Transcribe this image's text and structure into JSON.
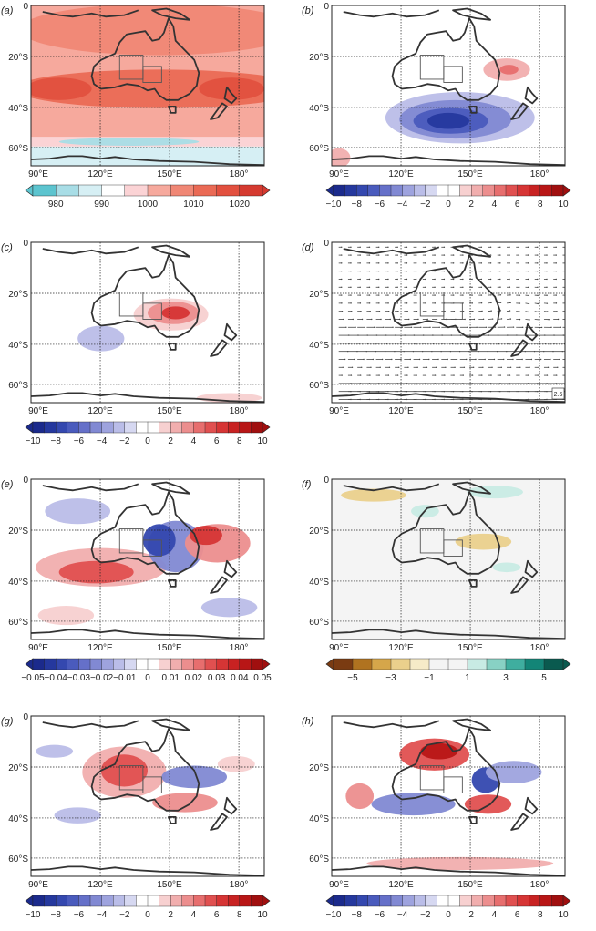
{
  "figure": {
    "lon_ticks": [
      "90°E",
      "120°E",
      "150°E",
      "180°"
    ],
    "lat_ticks": [
      "0",
      "20°S",
      "40°S",
      "60°S"
    ],
    "panels": [
      {
        "id": "a",
        "label": "(a)",
        "lat_labels": [
          "0",
          "20°S",
          "40°S",
          "60°S"
        ],
        "field": "mslp",
        "vector_scale_label": "",
        "colorbar": {
          "labels": [
            "980",
            "990",
            "1000",
            "1010",
            "1020"
          ],
          "colors": [
            "#5cc4cf",
            "#a8dde6",
            "#d6eff4",
            "#ffffff",
            "#fbd3d5",
            "#f6a99d",
            "#f08775",
            "#ea6a55",
            "#e2503f",
            "#d53a30"
          ]
        }
      },
      {
        "id": "b",
        "label": "(b)",
        "lat_labels": [
          "0",
          "20°S",
          "40°S",
          "60°S"
        ],
        "field": "anomaly_b",
        "vector_scale_label": "",
        "colorbar": {
          "labels": [
            "−10",
            "−8",
            "−6",
            "−4",
            "−2",
            "0",
            "2",
            "4",
            "6",
            "8",
            "10"
          ],
          "colors": [
            "#1b2a8c",
            "#25389e",
            "#3448af",
            "#4a5bbd",
            "#6570c9",
            "#8189d3",
            "#9ea3de",
            "#babde8",
            "#d6d8f1",
            "#ffffff",
            "#ffffff",
            "#f7d0d0",
            "#f1aeae",
            "#ec8e8e",
            "#e76e6e",
            "#e05050",
            "#d63535",
            "#c82222",
            "#b81616",
            "#a00f0f"
          ]
        }
      },
      {
        "id": "c",
        "label": "(c)",
        "lat_labels": [
          "0",
          "20°S",
          "40°S",
          "60°S"
        ],
        "field": "anomaly_c",
        "vector_scale_label": "",
        "colorbar": {
          "labels": [
            "−10",
            "−8",
            "−6",
            "−4",
            "−2",
            "0",
            "2",
            "4",
            "6",
            "8",
            "10"
          ],
          "colors": [
            "#1b2a8c",
            "#25389e",
            "#3448af",
            "#4a5bbd",
            "#6570c9",
            "#8189d3",
            "#9ea3de",
            "#babde8",
            "#d6d8f1",
            "#ffffff",
            "#ffffff",
            "#f7d0d0",
            "#f1aeae",
            "#ec8e8e",
            "#e76e6e",
            "#e05050",
            "#d63535",
            "#c82222",
            "#b81616",
            "#a00f0f"
          ]
        }
      },
      {
        "id": "d",
        "label": "(d)",
        "lat_labels": [
          "0",
          "20°S",
          "40°S",
          "60°S"
        ],
        "field": "wind_vectors",
        "vector_scale_label": "2.5",
        "colorbar": null
      },
      {
        "id": "e",
        "label": "(e)",
        "lat_labels": [
          "0",
          "20°S",
          "40°S",
          "60°S"
        ],
        "field": "anomaly_e",
        "vector_scale_label": "",
        "colorbar": {
          "labels": [
            "−0.05",
            "−0.04",
            "−0.03",
            "−0.02",
            "−0.01",
            "0",
            "0.01",
            "0.02",
            "0.03",
            "0.04",
            "0.05"
          ],
          "colors": [
            "#1b2a8c",
            "#25389e",
            "#3448af",
            "#4a5bbd",
            "#6570c9",
            "#8189d3",
            "#9ea3de",
            "#babde8",
            "#d6d8f1",
            "#ffffff",
            "#ffffff",
            "#f7d0d0",
            "#f1aeae",
            "#ec8e8e",
            "#e76e6e",
            "#e05050",
            "#d63535",
            "#c82222",
            "#b81616",
            "#a00f0f"
          ]
        }
      },
      {
        "id": "f",
        "label": "(f)",
        "lat_labels": [
          "0",
          "20°S",
          "40°S",
          "60°S"
        ],
        "field": "precip",
        "vector_scale_label": "",
        "colorbar": {
          "labels": [
            "−5",
            "−3",
            "−1",
            "1",
            "3",
            "5"
          ],
          "colors": [
            "#7a3b12",
            "#b07320",
            "#d5a64a",
            "#ead08c",
            "#f6ebc8",
            "#f4f4f4",
            "#f4f4f4",
            "#c8ebe4",
            "#88d1c4",
            "#3fae9f",
            "#138577",
            "#0a5a4f"
          ]
        }
      },
      {
        "id": "g",
        "label": "(g)",
        "lat_labels": [
          "0",
          "20°S",
          "40°S",
          "60°S"
        ],
        "field": "anomaly_g",
        "vector_scale_label": "",
        "colorbar": {
          "labels": [
            "−10",
            "−8",
            "−6",
            "−4",
            "−2",
            "0",
            "2",
            "4",
            "6",
            "8",
            "10"
          ],
          "colors": [
            "#1b2a8c",
            "#25389e",
            "#3448af",
            "#4a5bbd",
            "#6570c9",
            "#8189d3",
            "#9ea3de",
            "#babde8",
            "#d6d8f1",
            "#ffffff",
            "#ffffff",
            "#f7d0d0",
            "#f1aeae",
            "#ec8e8e",
            "#e76e6e",
            "#e05050",
            "#d63535",
            "#c82222",
            "#b81616",
            "#a00f0f"
          ]
        }
      },
      {
        "id": "h",
        "label": "(h)",
        "lat_labels": [
          "",
          "20°S",
          "40°S",
          "60°S"
        ],
        "field": "anomaly_h",
        "vector_scale_label": "",
        "colorbar": {
          "labels": [
            "−10",
            "−8",
            "−6",
            "−4",
            "−2",
            "0",
            "2",
            "4",
            "6",
            "8",
            "10"
          ],
          "colors": [
            "#1b2a8c",
            "#25389e",
            "#3448af",
            "#4a5bbd",
            "#6570c9",
            "#8189d3",
            "#9ea3de",
            "#babde8",
            "#d6d8f1",
            "#ffffff",
            "#ffffff",
            "#f7d0d0",
            "#f1aeae",
            "#ec8e8e",
            "#e76e6e",
            "#e05050",
            "#d63535",
            "#c82222",
            "#b81616",
            "#a00f0f"
          ]
        }
      }
    ]
  }
}
